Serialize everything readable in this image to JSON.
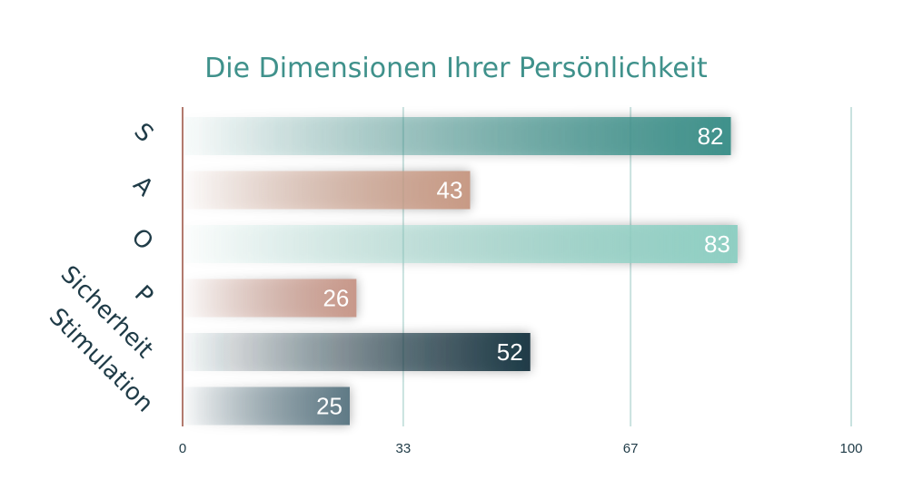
{
  "chart_data": {
    "type": "bar",
    "orientation": "horizontal",
    "title": "Die Dimensionen Ihrer Persönlichkeit",
    "categories": [
      "S",
      "A",
      "O",
      "P",
      "Sicherheit",
      "Stimulation"
    ],
    "values": [
      82,
      43,
      83,
      26,
      52,
      25
    ],
    "value_labels": [
      "82",
      "43",
      "83",
      "26",
      "52",
      "25"
    ],
    "xlim": [
      0,
      100
    ],
    "x_ticks": [
      0,
      33,
      67,
      100
    ],
    "x_tick_labels": [
      "0",
      "33",
      "67",
      "100"
    ],
    "grid": true,
    "bar_colors": [
      "#3f918b",
      "#c89a85",
      "#8fcfc3",
      "#c8988a",
      "#1f3b47",
      "#5f7a86"
    ],
    "colors": {
      "title": "#3f918b",
      "axis_line": "#b27a6e",
      "grid": "#c9e2df",
      "label": "#1f3b47",
      "value_text": "#ffffff"
    }
  }
}
